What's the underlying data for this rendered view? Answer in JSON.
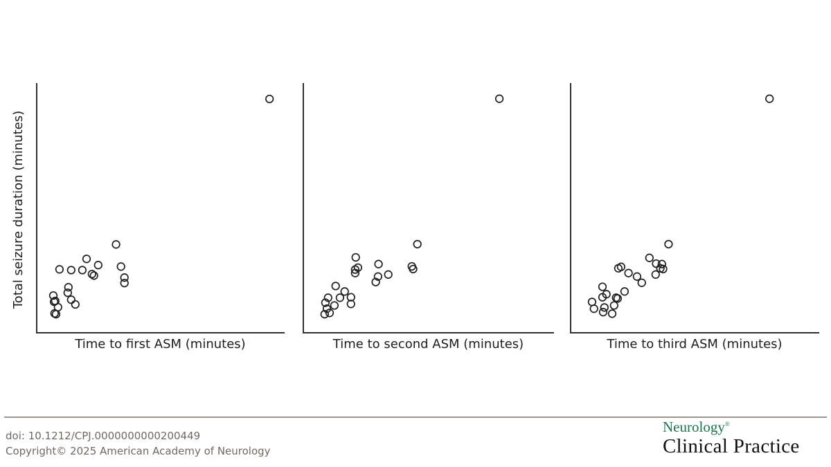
{
  "figure": {
    "kind": "three-panel scatter figure, shared unlabeled axes, open-circle markers",
    "shared_ylabel": "Total seizure duration (minutes)"
  },
  "chart_data": [
    {
      "type": "scatter",
      "panel": 1,
      "xlabel": "Time to first ASM (minutes)",
      "ylabel": "Total seizure duration (minutes)",
      "axis_tick_labels": "none (axes are unlabeled lines only)",
      "marker": "open-circle",
      "legend": "none",
      "grid": false,
      "notes": "dense cluster near lower-left plus one extreme outlier at upper-right",
      "points_norm_xy": [
        [
          0.939,
          0.936
        ],
        [
          0.32,
          0.352
        ],
        [
          0.201,
          0.294
        ],
        [
          0.092,
          0.252
        ],
        [
          0.139,
          0.249
        ],
        [
          0.184,
          0.249
        ],
        [
          0.248,
          0.269
        ],
        [
          0.223,
          0.233
        ],
        [
          0.231,
          0.227
        ],
        [
          0.34,
          0.263
        ],
        [
          0.354,
          0.219
        ],
        [
          0.354,
          0.197
        ],
        [
          0.128,
          0.18
        ],
        [
          0.125,
          0.158
        ],
        [
          0.067,
          0.147
        ],
        [
          0.075,
          0.125
        ],
        [
          0.139,
          0.13
        ],
        [
          0.156,
          0.111
        ],
        [
          0.086,
          0.1
        ],
        [
          0.07,
          0.122
        ],
        [
          0.072,
          0.075
        ],
        [
          0.078,
          0.072
        ]
      ]
    },
    {
      "type": "scatter",
      "panel": 2,
      "xlabel": "Time to second ASM (minutes)",
      "ylabel": "Total seizure duration (minutes)",
      "axis_tick_labels": "none (axes are unlabeled lines only)",
      "marker": "open-circle",
      "legend": "none",
      "grid": false,
      "notes": "positively trending cluster near lower-left plus one extreme outlier at upper-right",
      "points_norm_xy": [
        [
          0.782,
          0.937
        ],
        [
          0.455,
          0.353
        ],
        [
          0.209,
          0.3
        ],
        [
          0.218,
          0.259
        ],
        [
          0.207,
          0.251
        ],
        [
          0.207,
          0.237
        ],
        [
          0.3,
          0.273
        ],
        [
          0.298,
          0.223
        ],
        [
          0.289,
          0.201
        ],
        [
          0.339,
          0.231
        ],
        [
          0.433,
          0.264
        ],
        [
          0.438,
          0.253
        ],
        [
          0.129,
          0.185
        ],
        [
          0.165,
          0.163
        ],
        [
          0.146,
          0.138
        ],
        [
          0.099,
          0.138
        ],
        [
          0.088,
          0.118
        ],
        [
          0.124,
          0.107
        ],
        [
          0.19,
          0.14
        ],
        [
          0.19,
          0.113
        ],
        [
          0.094,
          0.094
        ],
        [
          0.085,
          0.072
        ],
        [
          0.105,
          0.077
        ]
      ]
    },
    {
      "type": "scatter",
      "panel": 3,
      "xlabel": "Time to third ASM (minutes)",
      "ylabel": "Total seizure duration (minutes)",
      "axis_tick_labels": "none (axes are unlabeled lines only)",
      "marker": "open-circle",
      "legend": "none",
      "grid": false,
      "notes": "positively trending cluster near lower-left plus one extreme outlier at upper-right",
      "points_norm_xy": [
        [
          0.8,
          0.937
        ],
        [
          0.394,
          0.353
        ],
        [
          0.317,
          0.298
        ],
        [
          0.344,
          0.275
        ],
        [
          0.367,
          0.273
        ],
        [
          0.361,
          0.256
        ],
        [
          0.372,
          0.253
        ],
        [
          0.342,
          0.231
        ],
        [
          0.192,
          0.256
        ],
        [
          0.203,
          0.262
        ],
        [
          0.233,
          0.237
        ],
        [
          0.267,
          0.223
        ],
        [
          0.286,
          0.198
        ],
        [
          0.128,
          0.182
        ],
        [
          0.144,
          0.152
        ],
        [
          0.128,
          0.14
        ],
        [
          0.217,
          0.163
        ],
        [
          0.183,
          0.138
        ],
        [
          0.189,
          0.135
        ],
        [
          0.086,
          0.121
        ],
        [
          0.175,
          0.107
        ],
        [
          0.136,
          0.099
        ],
        [
          0.094,
          0.094
        ],
        [
          0.131,
          0.08
        ],
        [
          0.167,
          0.074
        ]
      ]
    }
  ],
  "footer": {
    "doi": "doi: 10.1212/CPJ.0000000000200449",
    "copyright": "Copyright© 2025 American Academy of Neurology",
    "logo": {
      "line1": "Neurology",
      "registered": "®",
      "line2": "Clinical Practice"
    }
  },
  "colors": {
    "background": "#ffffff",
    "axis_line": "#2f2f2f",
    "marker_outline": "#1f1f1f",
    "axis_label_text": "#1c1c1c",
    "divider_line": "#9a948c",
    "footer_text": "#6f6861",
    "logo_green": "#1b7350",
    "logo_black": "#111111"
  }
}
